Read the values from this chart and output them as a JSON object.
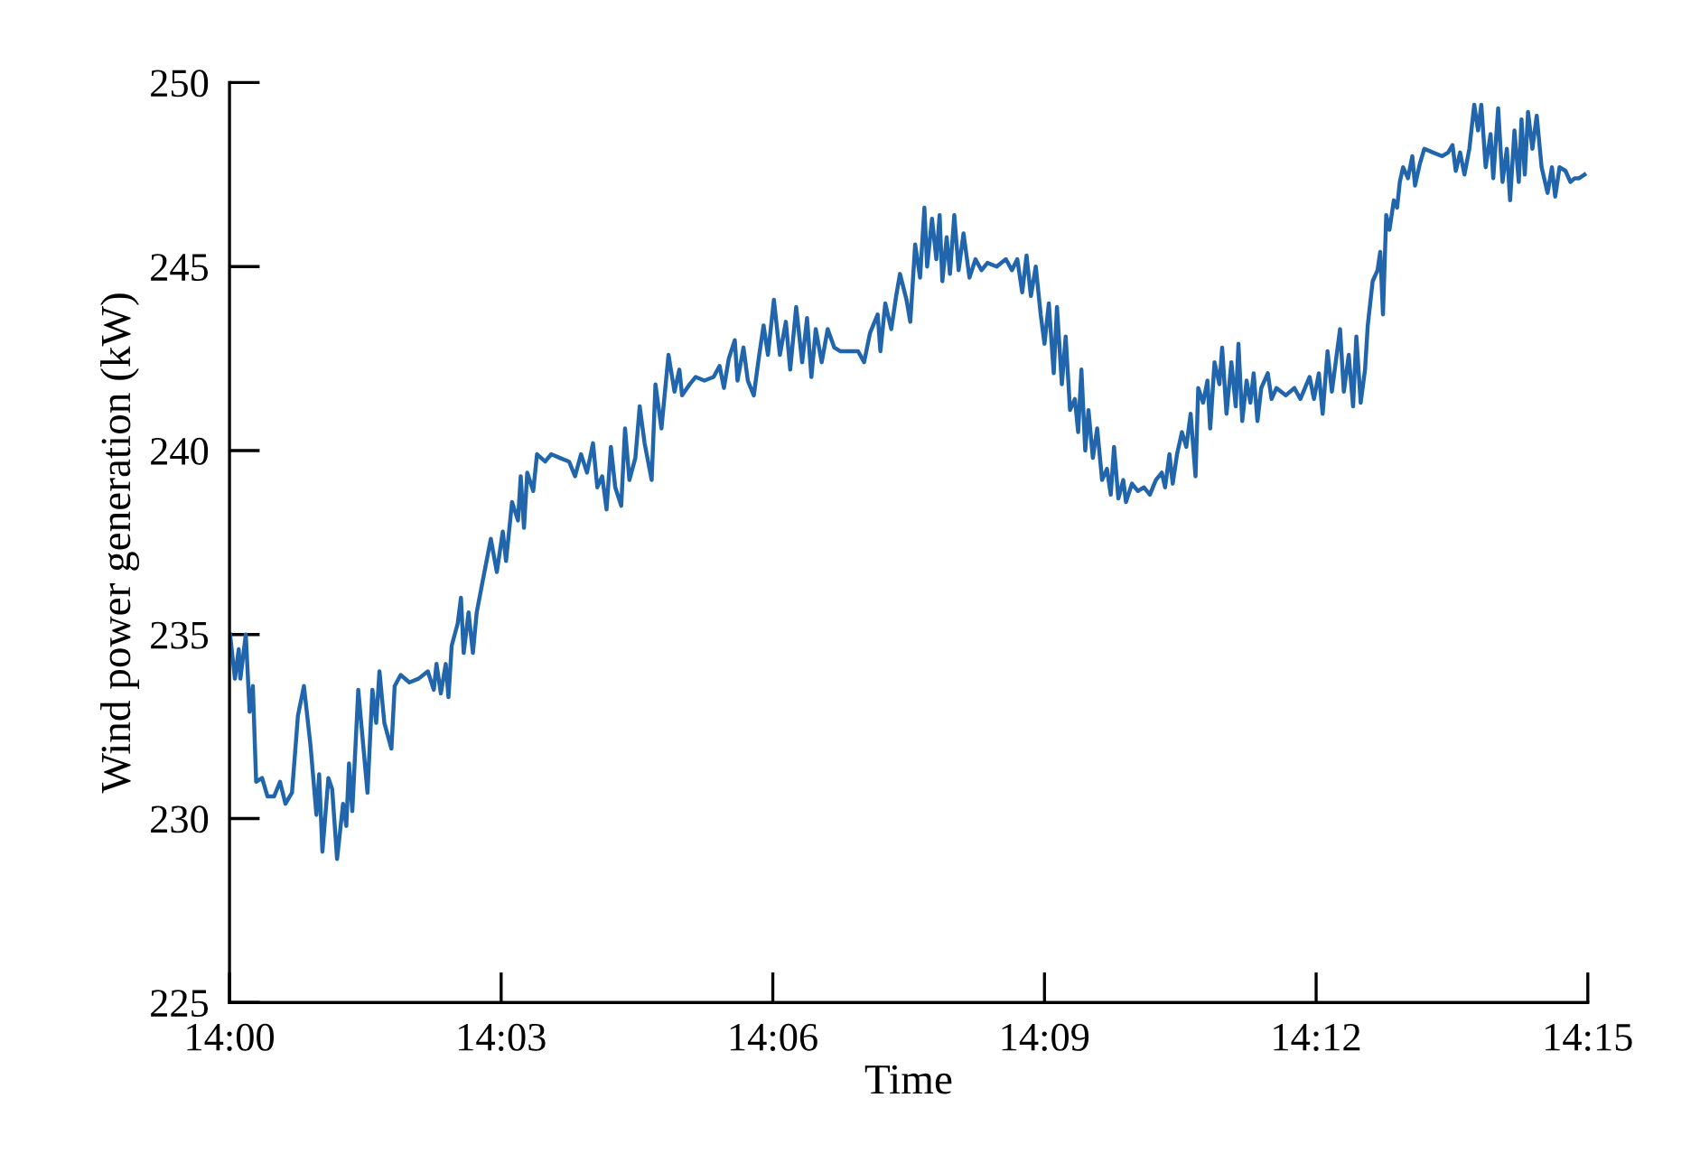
{
  "chart_data": {
    "type": "line",
    "xlabel": "Time",
    "ylabel": "Wind power generation (kW)",
    "xlim": [
      14.0,
      14.25
    ],
    "ylim": [
      225,
      250
    ],
    "xticks": [
      {
        "value": 14.0,
        "label": "14:00"
      },
      {
        "value": 14.05,
        "label": "14:03"
      },
      {
        "value": 14.1,
        "label": "14:06"
      },
      {
        "value": 14.15,
        "label": "14:09"
      },
      {
        "value": 14.2,
        "label": "14:12"
      },
      {
        "value": 14.25,
        "label": "14:15"
      }
    ],
    "yticks": [
      225,
      230,
      235,
      240,
      245,
      250
    ],
    "grid": false,
    "series": [
      {
        "color": "#2166ac",
        "x": [
          14.0001,
          14.001,
          14.0017,
          14.002,
          14.003,
          14.0037,
          14.0043,
          14.0049,
          14.006,
          14.007,
          14.0082,
          14.0093,
          14.0103,
          14.0115,
          14.0126,
          14.0137,
          14.0149,
          14.016,
          14.0165,
          14.0171,
          14.0182,
          14.0189,
          14.0198,
          14.0209,
          14.0215,
          14.022,
          14.0226,
          14.0237,
          14.0243,
          14.0254,
          14.0263,
          14.027,
          14.0276,
          14.0285,
          14.0298,
          14.0304,
          14.0315,
          14.0331,
          14.0348,
          14.0365,
          14.0376,
          14.0381,
          14.0389,
          14.0398,
          14.0403,
          14.0409,
          14.042,
          14.0426,
          14.0431,
          14.044,
          14.0448,
          14.0455,
          14.0464,
          14.0481,
          14.0492,
          14.0503,
          14.0509,
          14.052,
          14.0531,
          14.0536,
          14.0542,
          14.0548,
          14.0559,
          14.0566,
          14.0581,
          14.0592,
          14.0608,
          14.0625,
          14.0636,
          14.0647,
          14.0658,
          14.0669,
          14.0677,
          14.0686,
          14.0694,
          14.0702,
          14.071,
          14.0721,
          14.0728,
          14.0736,
          14.0747,
          14.0755,
          14.0764,
          14.0777,
          14.0784,
          14.0795,
          14.0808,
          14.0819,
          14.0828,
          14.0833,
          14.0847,
          14.0858,
          14.0874,
          14.0891,
          14.0902,
          14.091,
          14.0919,
          14.093,
          14.0935,
          14.0946,
          14.0954,
          14.0965,
          14.0974,
          14.0983,
          14.0991,
          14.1002,
          14.1013,
          14.1024,
          14.1032,
          14.1043,
          14.1054,
          14.1063,
          14.1071,
          14.1079,
          14.109,
          14.1101,
          14.1113,
          14.1124,
          14.114,
          14.1157,
          14.1168,
          14.1179,
          14.1193,
          14.1198,
          14.1207,
          14.1218,
          14.1227,
          14.1234,
          14.1246,
          14.1253,
          14.1262,
          14.1271,
          14.1279,
          14.1284,
          14.1293,
          14.1301,
          14.1307,
          14.1312,
          14.132,
          14.1326,
          14.1334,
          14.1342,
          14.1351,
          14.1362,
          14.1373,
          14.1384,
          14.1395,
          14.1412,
          14.1429,
          14.144,
          14.145,
          14.1459,
          14.1467,
          14.1475,
          14.1484,
          14.1493,
          14.15,
          14.1508,
          14.1517,
          14.1523,
          14.1532,
          14.1539,
          14.1547,
          14.1556,
          14.1562,
          14.1568,
          14.1575,
          14.1581,
          14.1589,
          14.1597,
          14.1606,
          14.1615,
          14.1622,
          14.1628,
          14.1636,
          14.1645,
          14.165,
          14.1661,
          14.1672,
          14.1683,
          14.1694,
          14.1705,
          14.1716,
          14.1722,
          14.173,
          14.1736,
          14.1744,
          14.1753,
          14.1761,
          14.1769,
          14.1778,
          14.1783,
          14.1792,
          14.18,
          14.1805,
          14.1813,
          14.1822,
          14.1827,
          14.1835,
          14.1844,
          14.1852,
          14.1857,
          14.1864,
          14.1872,
          14.1879,
          14.1885,
          14.1892,
          14.1899,
          14.1911,
          14.1918,
          14.1927,
          14.1944,
          14.196,
          14.1971,
          14.1988,
          14.1996,
          14.2005,
          14.2012,
          14.2021,
          14.2029,
          14.2036,
          14.2044,
          14.2051,
          14.206,
          14.2068,
          14.2074,
          14.2082,
          14.209,
          14.2095,
          14.2104,
          14.2113,
          14.2118,
          14.2123,
          14.2129,
          14.2135,
          14.2143,
          14.2149,
          14.2154,
          14.216,
          14.2169,
          14.2177,
          14.2182,
          14.2191,
          14.2199,
          14.2215,
          14.2232,
          14.2243,
          14.2251,
          14.2257,
          14.2265,
          14.2273,
          14.2282,
          14.2291,
          14.2298,
          14.2304,
          14.2312,
          14.2321,
          14.2326,
          14.2335,
          14.2343,
          14.2351,
          14.2357,
          14.2365,
          14.2373,
          14.2378,
          14.2384,
          14.239,
          14.2398,
          14.2406,
          14.2415,
          14.2426,
          14.2434,
          14.244,
          14.2448,
          14.2459,
          14.2468,
          14.2476,
          14.2484,
          14.2494
        ],
        "values": [
          235.0,
          233.8,
          234.6,
          233.8,
          235.0,
          232.9,
          233.6,
          231.0,
          231.1,
          230.6,
          230.6,
          231.0,
          230.4,
          230.7,
          232.8,
          233.6,
          232.0,
          230.1,
          231.2,
          229.1,
          231.1,
          230.8,
          228.9,
          230.4,
          229.8,
          231.5,
          230.2,
          233.5,
          232.5,
          230.7,
          233.5,
          232.6,
          234.0,
          232.6,
          231.9,
          233.6,
          233.9,
          233.7,
          233.8,
          234.0,
          233.5,
          234.2,
          233.4,
          234.2,
          233.3,
          234.7,
          235.3,
          236.0,
          234.5,
          235.6,
          234.5,
          235.6,
          236.3,
          237.6,
          236.7,
          237.8,
          237.0,
          238.6,
          238.1,
          239.3,
          237.9,
          239.4,
          238.9,
          239.9,
          239.7,
          239.9,
          239.8,
          239.7,
          239.3,
          239.9,
          239.4,
          240.2,
          239.0,
          239.3,
          238.4,
          240.1,
          239.0,
          238.5,
          240.6,
          239.2,
          239.8,
          241.2,
          240.2,
          239.2,
          241.8,
          240.6,
          242.6,
          241.6,
          242.2,
          241.5,
          241.8,
          242.0,
          241.9,
          242.0,
          242.3,
          241.7,
          242.5,
          243.0,
          241.9,
          242.8,
          241.9,
          241.5,
          242.5,
          243.4,
          242.6,
          244.1,
          242.6,
          243.5,
          242.2,
          243.9,
          242.4,
          243.6,
          242.0,
          243.3,
          242.4,
          243.3,
          242.8,
          242.7,
          242.7,
          242.7,
          242.4,
          243.2,
          243.7,
          242.7,
          244.0,
          243.3,
          244.2,
          244.8,
          244.1,
          243.5,
          245.6,
          244.7,
          246.6,
          245.0,
          246.3,
          245.2,
          246.4,
          244.6,
          245.8,
          244.8,
          246.4,
          244.9,
          245.9,
          244.7,
          245.2,
          244.9,
          245.1,
          245.0,
          245.2,
          244.9,
          245.2,
          244.3,
          245.3,
          244.2,
          245.0,
          243.7,
          242.9,
          244.0,
          242.1,
          243.9,
          241.8,
          243.1,
          241.1,
          241.4,
          240.5,
          242.2,
          240.0,
          241.1,
          239.8,
          240.6,
          239.2,
          239.5,
          238.8,
          240.1,
          238.7,
          239.2,
          238.6,
          239.1,
          238.9,
          239.0,
          238.8,
          239.2,
          239.4,
          239.0,
          239.9,
          239.1,
          239.9,
          240.5,
          240.1,
          241.0,
          239.3,
          241.7,
          241.3,
          241.9,
          240.6,
          242.4,
          241.8,
          242.8,
          241.0,
          242.4,
          241.2,
          242.9,
          240.8,
          241.9,
          241.3,
          242.1,
          240.8,
          241.7,
          242.1,
          241.4,
          241.7,
          241.5,
          241.7,
          241.4,
          242.0,
          241.4,
          242.1,
          241.0,
          242.7,
          241.6,
          242.4,
          243.3,
          241.6,
          242.6,
          241.2,
          243.1,
          241.3,
          242.2,
          243.4,
          244.6,
          244.9,
          245.4,
          243.7,
          246.4,
          246.0,
          246.8,
          246.6,
          247.3,
          247.7,
          247.4,
          248.0,
          247.2,
          247.8,
          248.2,
          248.1,
          248.0,
          248.1,
          248.3,
          247.6,
          248.1,
          247.5,
          248.2,
          249.4,
          248.7,
          249.4,
          247.7,
          248.6,
          247.4,
          249.3,
          247.3,
          248.2,
          246.8,
          248.7,
          247.3,
          249.0,
          247.5,
          249.2,
          248.2,
          249.1,
          247.7,
          247.0,
          247.7,
          246.9,
          247.7,
          247.6,
          247.3,
          247.4,
          247.4,
          247.5
        ]
      }
    ]
  }
}
